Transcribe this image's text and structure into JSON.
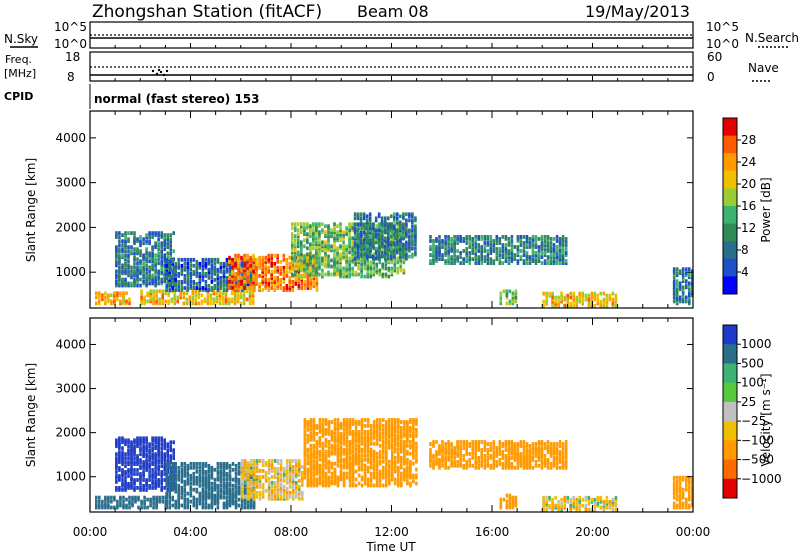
{
  "header": {
    "station_title": "Zhongshan Station (fitACF)",
    "beam": "Beam 08",
    "date": "19/May/2013"
  },
  "param_panels": {
    "sky_label": "N.Sky",
    "sky_ticks": [
      "10^5",
      "10^0"
    ],
    "search_label": "N.Search",
    "search_ticks": [
      "10^5",
      "10^0"
    ],
    "freq_label_1": "Freq.",
    "freq_label_2": "[MHz]",
    "freq_ticks": [
      "18",
      "8"
    ],
    "nave_label": "Nave",
    "nave_ticks": [
      "60",
      "0"
    ],
    "cpid_label": "CPID",
    "cpid_text": "normal (fast stereo) 153"
  },
  "chart_data": [
    {
      "type": "heatmap",
      "name": "power",
      "ylabel": "Slant Range [km]",
      "ylim": [
        200,
        4600
      ],
      "yticks": [
        "4000",
        "3000",
        "2000",
        "1000"
      ],
      "xlim_hours": [
        0,
        24
      ],
      "colorbar_title": "Power [dB]",
      "colorbar_ticks": [
        "28",
        "24",
        "20",
        "16",
        "12",
        "8",
        "4"
      ],
      "colorbar_colors": [
        "#e30000",
        "#ff5a00",
        "#ff9a00",
        "#f0c000",
        "#9acd32",
        "#3cb371",
        "#2e8b57",
        "#2a6e8c",
        "#1e50c8",
        "#0000ff"
      ],
      "approx_regions": [
        {
          "t0": 0.2,
          "t1": 1.6,
          "r0": 300,
          "r1": 550,
          "dB": 22
        },
        {
          "t0": 1.0,
          "t1": 3.4,
          "r0": 700,
          "r1": 1900,
          "dB": 8
        },
        {
          "t0": 2.0,
          "t1": 6.5,
          "r0": 300,
          "r1": 600,
          "dB": 20
        },
        {
          "t0": 3.0,
          "t1": 6.5,
          "r0": 600,
          "r1": 1300,
          "dB": 7
        },
        {
          "t0": 5.5,
          "t1": 9.0,
          "r0": 600,
          "r1": 1400,
          "dB": 24
        },
        {
          "t0": 8.0,
          "t1": 12.5,
          "r0": 900,
          "r1": 2100,
          "dB": 14
        },
        {
          "t0": 10.5,
          "t1": 13.0,
          "r0": 1300,
          "r1": 2300,
          "dB": 8
        },
        {
          "t0": 13.5,
          "t1": 19.0,
          "r0": 1200,
          "r1": 1800,
          "dB": 9
        },
        {
          "t0": 16.3,
          "t1": 17.0,
          "r0": 300,
          "r1": 600,
          "dB": 14
        },
        {
          "t0": 18.0,
          "t1": 21.0,
          "r0": 250,
          "r1": 550,
          "dB": 20
        },
        {
          "t0": 23.2,
          "t1": 24.0,
          "r0": 300,
          "r1": 1100,
          "dB": 8
        }
      ]
    },
    {
      "type": "heatmap",
      "name": "velocity",
      "ylabel": "Slant Range [km]",
      "ylim": [
        200,
        4600
      ],
      "yticks": [
        "4000",
        "3000",
        "2000",
        "1000"
      ],
      "xlim_hours": [
        0,
        24
      ],
      "xticks": [
        "00:00",
        "04:00",
        "08:00",
        "12:00",
        "16:00",
        "20:00",
        "00:00"
      ],
      "xlabel": "Time UT",
      "colorbar_title": "Velocity [m s⁻¹]",
      "colorbar_ticks": [
        "1000",
        "500",
        "100",
        "25",
        "−25",
        "−100",
        "−500",
        "−1000"
      ],
      "colorbar_colors": [
        "#1e3cc8",
        "#2a6e8c",
        "#3cb371",
        "#5ac83c",
        "#c0c0c0",
        "#f0c000",
        "#ff9a00",
        "#ff6a00",
        "#e30000"
      ],
      "approx_regions": [
        {
          "t0": 0.2,
          "t1": 3.0,
          "r0": 300,
          "r1": 550,
          "v": 300
        },
        {
          "t0": 1.0,
          "t1": 3.4,
          "r0": 700,
          "r1": 1900,
          "v": 600
        },
        {
          "t0": 3.0,
          "t1": 6.5,
          "r0": 300,
          "r1": 1300,
          "v": 400
        },
        {
          "t0": 6.0,
          "t1": 8.5,
          "r0": 500,
          "r1": 1400,
          "v": -50
        },
        {
          "t0": 8.5,
          "t1": 13.0,
          "r0": 800,
          "r1": 2300,
          "v": -300
        },
        {
          "t0": 13.5,
          "t1": 19.0,
          "r0": 1200,
          "r1": 1800,
          "v": -300
        },
        {
          "t0": 16.3,
          "t1": 17.0,
          "r0": 300,
          "r1": 600,
          "v": -300
        },
        {
          "t0": 18.0,
          "t1": 21.0,
          "r0": 250,
          "r1": 550,
          "v": -40
        },
        {
          "t0": 23.2,
          "t1": 24.0,
          "r0": 300,
          "r1": 1000,
          "v": -200
        }
      ]
    }
  ]
}
